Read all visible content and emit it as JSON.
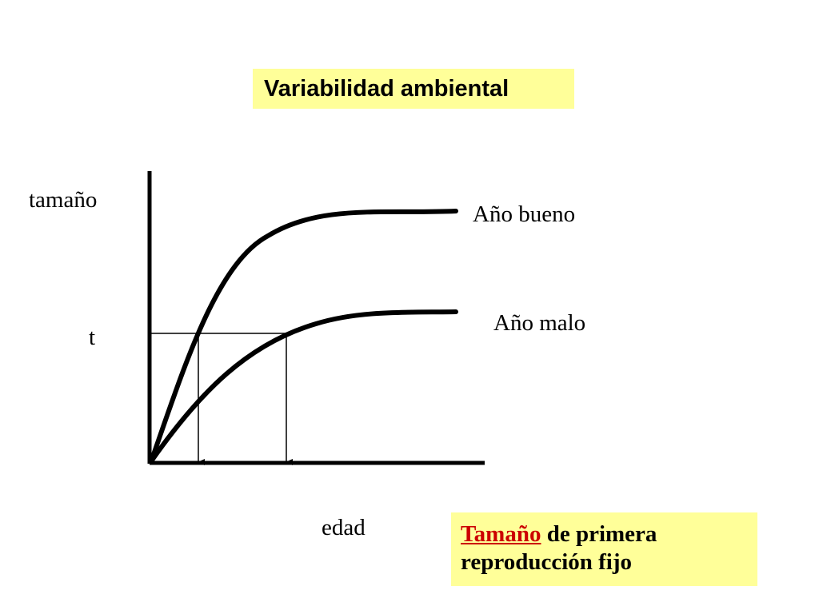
{
  "title": "Variabilidad ambiental",
  "axis_y_label": "tamaño",
  "axis_x_label": "edad",
  "threshold_label": "t",
  "curves": {
    "good": "Año bueno",
    "bad": "Año malo"
  },
  "note": {
    "highlight": "Tamaño",
    "line1_rest": " de primera",
    "line2": "reproducción fijo"
  },
  "colors": {
    "box_background": "#ffff99",
    "highlight": "#cc0000",
    "ink": "#000000"
  }
}
